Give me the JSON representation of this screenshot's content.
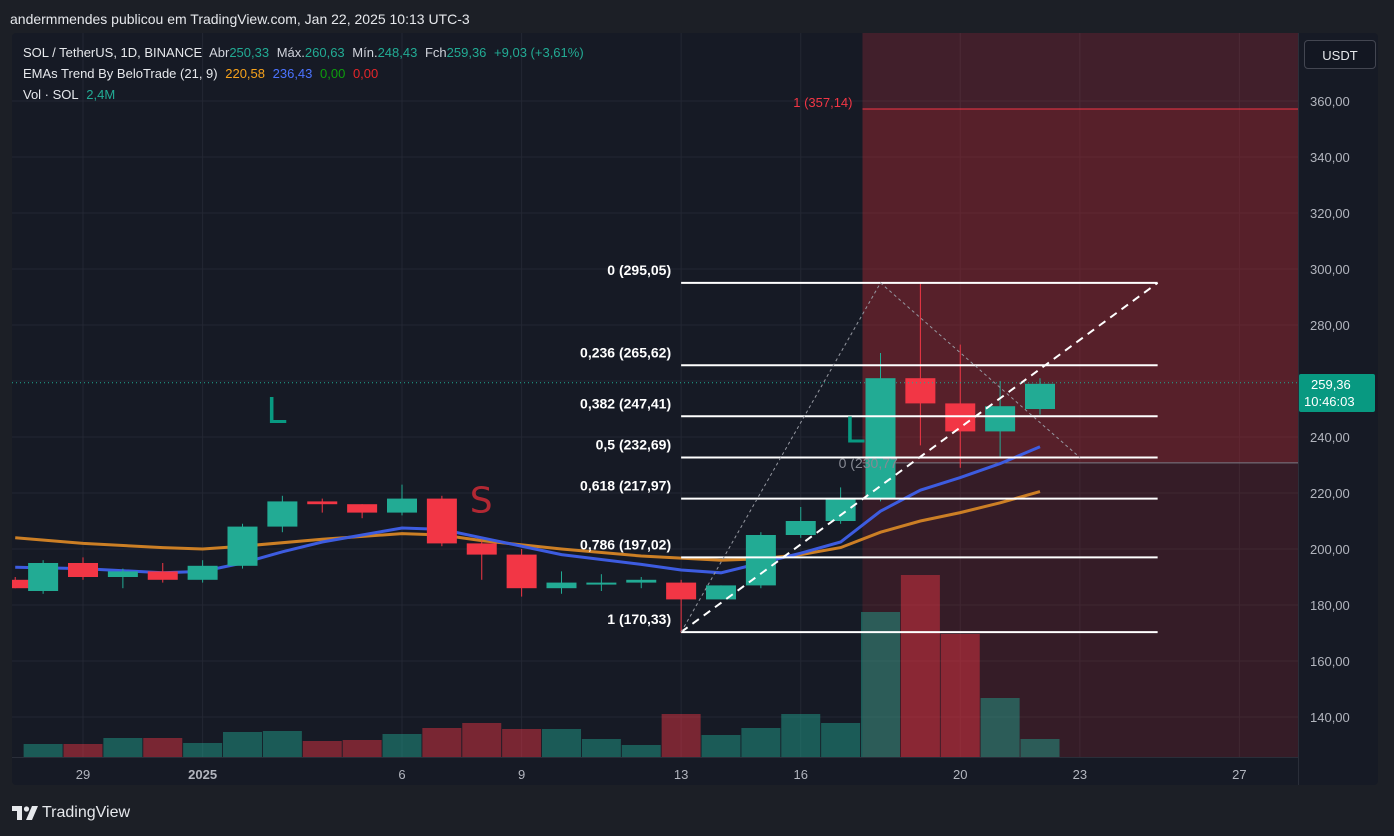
{
  "header": {
    "attribution": "andermmendes publicou em TradingView.com, Jan 22, 2025 10:13 UTC-3"
  },
  "legend": {
    "symbol": "SOL / TetherUS, 1D, BINANCE",
    "open_label": "Abr",
    "open": "250,33",
    "high_label": "Máx.",
    "high": "260,63",
    "low_label": "Mín.",
    "low": "248,43",
    "close_label": "Fch",
    "close": "259,36",
    "change": "+9,03 (+3,61%)",
    "ema_name": "EMAs Trend By BeloTrade (21, 9)",
    "ema_values": [
      "220,58",
      "236,43",
      "0,00",
      "0,00"
    ],
    "vol_name": "Vol · SOL",
    "vol_value": "2,4M"
  },
  "currency_button": "USDT",
  "last_price": {
    "value": "259,36",
    "countdown": "10:46:03"
  },
  "brand": "TradingView",
  "colors": {
    "up": "#22ab94",
    "down": "#f23645",
    "ema21": "#cc7f25",
    "ema9": "#3d5ce0",
    "background": "#161a25"
  },
  "chart_data": {
    "type": "candlestick",
    "symbol": "SOL / TetherUS",
    "interval": "1D",
    "y_axis": {
      "min": 125,
      "max": 380,
      "ticks": [
        "140,00",
        "160,00",
        "180,00",
        "200,00",
        "220,00",
        "240,00",
        "260,00",
        "280,00",
        "300,00",
        "320,00",
        "340,00",
        "360,00"
      ]
    },
    "x_axis": {
      "ticks": [
        {
          "label": "29",
          "index": 0
        },
        {
          "label": "2025",
          "index": 3,
          "bold": true
        },
        {
          "label": "6",
          "index": 8
        },
        {
          "label": "9",
          "index": 11
        },
        {
          "label": "13",
          "index": 15
        },
        {
          "label": "16",
          "index": 18
        },
        {
          "label": "20",
          "index": 22
        },
        {
          "label": "23",
          "index": 25
        },
        {
          "label": "27",
          "index": 29
        }
      ]
    },
    "candles": [
      {
        "x": -1.7,
        "o": 189,
        "h": 190,
        "l": 186,
        "c": 186
      },
      {
        "x": -1,
        "o": 185,
        "h": 196,
        "l": 184,
        "c": 195
      },
      {
        "x": 0,
        "o": 195,
        "h": 197,
        "l": 189,
        "c": 190
      },
      {
        "x": 1,
        "o": 190,
        "h": 193,
        "l": 186,
        "c": 192
      },
      {
        "x": 2,
        "o": 192,
        "h": 195,
        "l": 188,
        "c": 189
      },
      {
        "x": 3,
        "o": 189,
        "h": 196,
        "l": 188,
        "c": 194
      },
      {
        "x": 4,
        "o": 194,
        "h": 209,
        "l": 193,
        "c": 208
      },
      {
        "x": 5,
        "o": 208,
        "h": 219,
        "l": 206,
        "c": 217
      },
      {
        "x": 6,
        "o": 217,
        "h": 218,
        "l": 213,
        "c": 216
      },
      {
        "x": 7,
        "o": 216,
        "h": 216,
        "l": 211,
        "c": 213
      },
      {
        "x": 8,
        "o": 213,
        "h": 223,
        "l": 212,
        "c": 218
      },
      {
        "x": 9,
        "o": 218,
        "h": 219,
        "l": 201,
        "c": 202
      },
      {
        "x": 10,
        "o": 202,
        "h": 203,
        "l": 189,
        "c": 198
      },
      {
        "x": 11,
        "o": 198,
        "h": 200,
        "l": 183,
        "c": 186
      },
      {
        "x": 12,
        "o": 186,
        "h": 192,
        "l": 184,
        "c": 188
      },
      {
        "x": 13,
        "o": 188,
        "h": 191,
        "l": 185,
        "c": 188
      },
      {
        "x": 14,
        "o": 188,
        "h": 190,
        "l": 186,
        "c": 189
      },
      {
        "x": 15,
        "o": 188,
        "h": 189,
        "l": 170,
        "c": 182
      },
      {
        "x": 16,
        "o": 182,
        "h": 187,
        "l": 182,
        "c": 187
      },
      {
        "x": 17,
        "o": 187,
        "h": 206,
        "l": 186,
        "c": 205
      },
      {
        "x": 18,
        "o": 205,
        "h": 215,
        "l": 204,
        "c": 210
      },
      {
        "x": 19,
        "o": 210,
        "h": 222,
        "l": 209,
        "c": 218
      },
      {
        "x": 20,
        "o": 218,
        "h": 270,
        "l": 217,
        "c": 261
      },
      {
        "x": 21,
        "o": 261,
        "h": 295,
        "l": 237,
        "c": 252
      },
      {
        "x": 22,
        "o": 252,
        "h": 273,
        "l": 229,
        "c": 242
      },
      {
        "x": 23,
        "o": 242,
        "h": 260,
        "l": 233,
        "c": 251
      },
      {
        "x": 24,
        "o": 250,
        "h": 261,
        "l": 248,
        "c": 259
      }
    ],
    "volume": [
      {
        "x": -1.7,
        "h": 16,
        "up": false
      },
      {
        "x": -1,
        "h": 13,
        "up": true
      },
      {
        "x": 0,
        "h": 13,
        "up": false
      },
      {
        "x": 1,
        "h": 19,
        "up": true
      },
      {
        "x": 2,
        "h": 19,
        "up": false
      },
      {
        "x": 3,
        "h": 14,
        "up": true
      },
      {
        "x": 4,
        "h": 25,
        "up": true
      },
      {
        "x": 5,
        "h": 26,
        "up": true
      },
      {
        "x": 6,
        "h": 16,
        "up": false
      },
      {
        "x": 7,
        "h": 17,
        "up": false
      },
      {
        "x": 8,
        "h": 23,
        "up": true
      },
      {
        "x": 9,
        "h": 29,
        "up": false
      },
      {
        "x": 10,
        "h": 34,
        "up": false
      },
      {
        "x": 11,
        "h": 28,
        "up": false
      },
      {
        "x": 12,
        "h": 28,
        "up": true
      },
      {
        "x": 13,
        "h": 18,
        "up": true
      },
      {
        "x": 14,
        "h": 12,
        "up": true
      },
      {
        "x": 15,
        "h": 43,
        "up": false
      },
      {
        "x": 16,
        "h": 22,
        "up": true
      },
      {
        "x": 17,
        "h": 29,
        "up": true
      },
      {
        "x": 18,
        "h": 43,
        "up": true
      },
      {
        "x": 19,
        "h": 34,
        "up": true
      },
      {
        "x": 20,
        "h": 145,
        "up": true
      },
      {
        "x": 21,
        "h": 182,
        "up": false
      },
      {
        "x": 22,
        "h": 123,
        "up": false
      },
      {
        "x": 23,
        "h": 59,
        "up": true
      },
      {
        "x": 24,
        "h": 18,
        "up": true
      }
    ],
    "ema21": [
      [
        -1.7,
        204
      ],
      [
        0,
        202
      ],
      [
        2,
        200.5
      ],
      [
        3,
        200
      ],
      [
        4,
        201
      ],
      [
        6,
        203.5
      ],
      [
        8,
        205.5
      ],
      [
        9,
        205
      ],
      [
        10,
        203
      ],
      [
        12,
        200
      ],
      [
        14,
        197.5
      ],
      [
        16,
        196
      ],
      [
        17,
        196.5
      ],
      [
        18,
        198
      ],
      [
        19,
        200.5
      ],
      [
        20,
        206
      ],
      [
        21,
        210
      ],
      [
        22,
        213
      ],
      [
        23,
        216.5
      ],
      [
        24,
        220.5
      ]
    ],
    "ema9": [
      [
        -1.7,
        193.5
      ],
      [
        0,
        193
      ],
      [
        2,
        191.5
      ],
      [
        3,
        192
      ],
      [
        4,
        195
      ],
      [
        5,
        199
      ],
      [
        6,
        202.5
      ],
      [
        7,
        205
      ],
      [
        8,
        207.5
      ],
      [
        9,
        207
      ],
      [
        10,
        204
      ],
      [
        12,
        198
      ],
      [
        14,
        194.5
      ],
      [
        15,
        192.5
      ],
      [
        16,
        191.5
      ],
      [
        17,
        195
      ],
      [
        18,
        198.5
      ],
      [
        19,
        202.5
      ],
      [
        20,
        213.5
      ],
      [
        21,
        221
      ],
      [
        22,
        225.5
      ],
      [
        23,
        230.5
      ],
      [
        24,
        236.5
      ]
    ],
    "fibonacci": [
      {
        "label": "0 (295,05)",
        "price": 295.05
      },
      {
        "label": "0,236 (265,62)",
        "price": 265.62
      },
      {
        "label": "0,382 (247,41)",
        "price": 247.41
      },
      {
        "label": "0,5 (232,69)",
        "price": 232.69
      },
      {
        "label": "0,618 (217,97)",
        "price": 217.97
      },
      {
        "label": "0,786 (197,02)",
        "price": 197.02
      },
      {
        "label": "1 (170,33)",
        "price": 170.33
      }
    ],
    "fib_range": {
      "from_index": 15,
      "to_index": 26.95
    },
    "trend_dashed": {
      "from": [
        15,
        170.33
      ],
      "to": [
        26.95,
        295.05
      ]
    },
    "trend_dotted": [
      [
        15,
        170.33
      ],
      [
        20,
        295.05
      ],
      [
        25,
        232.69
      ]
    ],
    "projection": {
      "label": "1 (357,14)",
      "top_price": 357.14,
      "base_price": 230.77,
      "base_label": "0 (230,77",
      "from_index": 20
    },
    "annotations": [
      {
        "text": "L",
        "index": 4.6,
        "price": 245,
        "color": "#089981"
      },
      {
        "text": "S",
        "index": 9.7,
        "price": 213,
        "color": "#b22833"
      },
      {
        "text": "L",
        "index": 19.1,
        "price": 238,
        "color": "#089981"
      }
    ]
  }
}
